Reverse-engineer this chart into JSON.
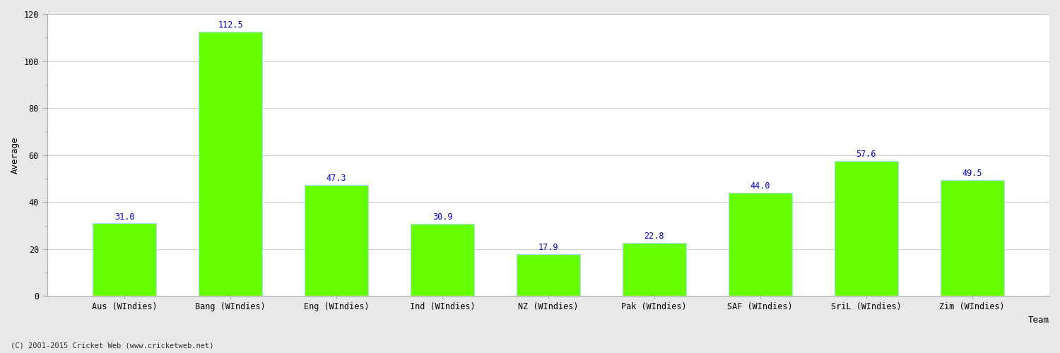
{
  "categories": [
    "Aus (WIndies)",
    "Bang (WIndies)",
    "Eng (WIndies)",
    "Ind (WIndies)",
    "NZ (WIndies)",
    "Pak (WIndies)",
    "SAF (WIndies)",
    "SriL (WIndies)",
    "Zim (WIndies)"
  ],
  "values": [
    31.0,
    112.5,
    47.3,
    30.9,
    17.9,
    22.8,
    44.0,
    57.6,
    49.5
  ],
  "bar_color": "#66ff00",
  "bar_edgecolor": "#aaddff",
  "label_color": "#0000cc",
  "xlabel": "Team",
  "ylabel": "Average",
  "ylim": [
    0,
    120
  ],
  "yticks": [
    0,
    20,
    40,
    60,
    80,
    100,
    120
  ],
  "grid_color": "#cccccc",
  "background_color": "#ffffff",
  "fig_background_color": "#e8e8e8",
  "label_fontsize": 8.5,
  "axis_label_fontsize": 9,
  "tick_fontsize": 8.5,
  "footer": "(C) 2001-2015 Cricket Web (www.cricketweb.net)"
}
